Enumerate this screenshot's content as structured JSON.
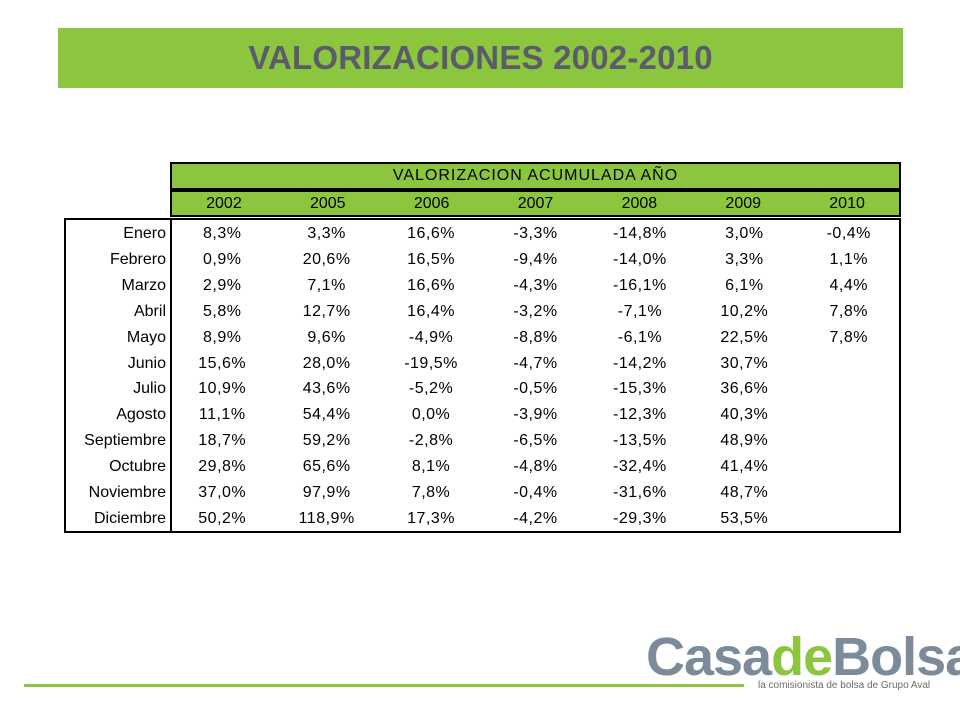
{
  "title": "VALORIZACIONES 2002-2010",
  "table": {
    "group_header": "VALORIZACION ACUMULADA AÑO",
    "years": [
      "2002",
      "2005",
      "2006",
      "2007",
      "2008",
      "2009",
      "2010"
    ],
    "rows": [
      {
        "month": "Enero",
        "values": [
          "8,3%",
          "3,3%",
          "16,6%",
          "-3,3%",
          "-14,8%",
          "3,0%",
          "-0,4%"
        ]
      },
      {
        "month": "Febrero",
        "values": [
          "0,9%",
          "20,6%",
          "16,5%",
          "-9,4%",
          "-14,0%",
          "3,3%",
          "1,1%"
        ]
      },
      {
        "month": "Marzo",
        "values": [
          "2,9%",
          "7,1%",
          "16,6%",
          "-4,3%",
          "-16,1%",
          "6,1%",
          "4,4%"
        ]
      },
      {
        "month": "Abril",
        "values": [
          "5,8%",
          "12,7%",
          "16,4%",
          "-3,2%",
          "-7,1%",
          "10,2%",
          "7,8%"
        ]
      },
      {
        "month": "Mayo",
        "values": [
          "8,9%",
          "9,6%",
          "-4,9%",
          "-8,8%",
          "-6,1%",
          "22,5%",
          "7,8%"
        ]
      },
      {
        "month": "Junio",
        "values": [
          "15,6%",
          "28,0%",
          "-19,5%",
          "-4,7%",
          "-14,2%",
          "30,7%",
          ""
        ]
      },
      {
        "month": "Julio",
        "values": [
          "10,9%",
          "43,6%",
          "-5,2%",
          "-0,5%",
          "-15,3%",
          "36,6%",
          ""
        ]
      },
      {
        "month": "Agosto",
        "values": [
          "11,1%",
          "54,4%",
          "0,0%",
          "-3,9%",
          "-12,3%",
          "40,3%",
          ""
        ]
      },
      {
        "month": "Septiembre",
        "values": [
          "18,7%",
          "59,2%",
          "-2,8%",
          "-6,5%",
          "-13,5%",
          "48,9%",
          ""
        ]
      },
      {
        "month": "Octubre",
        "values": [
          "29,8%",
          "65,6%",
          "8,1%",
          "-4,8%",
          "-32,4%",
          "41,4%",
          ""
        ]
      },
      {
        "month": "Noviembre",
        "values": [
          "37,0%",
          "97,9%",
          "7,8%",
          "-0,4%",
          "-31,6%",
          "48,7%",
          ""
        ]
      },
      {
        "month": "Diciembre",
        "values": [
          "50,2%",
          "118,9%",
          "17,3%",
          "-4,2%",
          "-29,3%",
          "53,5%",
          ""
        ]
      }
    ]
  },
  "logo": {
    "part1": "Casa",
    "part2": "de",
    "part3": "Bolsa",
    "tagline": "la comisionista de bolsa de Grupo Aval"
  },
  "colors": {
    "accent_green": "#8cc63f",
    "title_text": "#5b5b6b",
    "logo_gray": "#7c8b9a"
  }
}
